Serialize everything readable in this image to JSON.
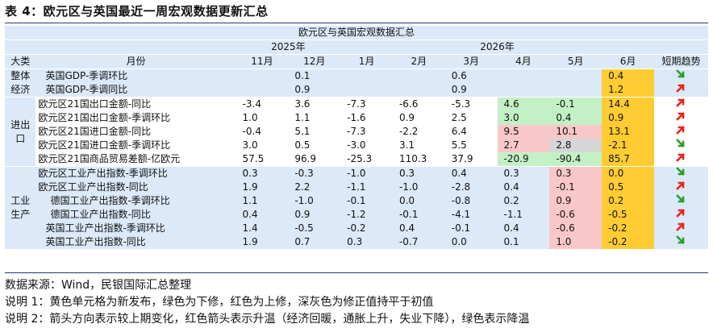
{
  "caption": "表 4：欧元区与英国最近一周宏观数据更新汇总",
  "table_title": "欧元区与英国宏观数据汇总",
  "year_2025": "2025年",
  "year_2026": "2026年",
  "col_category": "大类",
  "col_month": "月份",
  "months": [
    "11月",
    "12月",
    "1月",
    "2月",
    "3月",
    "4月",
    "5月",
    "6月"
  ],
  "col_trend": "短期趋势",
  "categories": {
    "overall": "整体\n经济",
    "trade": "进出\n口",
    "industry": "工业\n生产"
  },
  "rows": [
    {
      "name": "英国GDP-季调环比",
      "values": [
        "",
        "0.1",
        "",
        "",
        "0.6",
        "",
        "",
        "0.4"
      ],
      "trend": "down"
    },
    {
      "name": "英国GDP-季调同比",
      "values": [
        "",
        "0.9",
        "",
        "",
        "0.9",
        "",
        "",
        "1.2"
      ],
      "trend": "up"
    },
    {
      "name": "欧元区21国出口金额-同比",
      "values": [
        "-3.4",
        "3.6",
        "-7.3",
        "-6.6",
        "-5.3",
        "4.6",
        "-0.1",
        "14.4"
      ],
      "trend": "up"
    },
    {
      "name": "欧元区21国出口金额-季调环比",
      "values": [
        "1.0",
        "1.1",
        "-1.6",
        "0.9",
        "2.5",
        "3.0",
        "0.4",
        "0.9"
      ],
      "trend": "up"
    },
    {
      "name": "欧元区21国进口金额-同比",
      "values": [
        "-0.4",
        "5.1",
        "-7.3",
        "-2.2",
        "6.4",
        "9.5",
        "10.1",
        "13.1"
      ],
      "trend": "up"
    },
    {
      "name": "欧元区21国进口金额-季调环比",
      "values": [
        "3.0",
        "0.5",
        "-3.0",
        "3.1",
        "5.5",
        "2.7",
        "2.8",
        "-2.1"
      ],
      "trend": "down"
    },
    {
      "name": "欧元区21国商品贸易差额-亿欧元",
      "values": [
        "57.5",
        "96.9",
        "-25.3",
        "110.3",
        "37.9",
        "-20.9",
        "-90.4",
        "85.7"
      ],
      "trend": "up"
    },
    {
      "name": "欧元区工业产出指数-季调环比",
      "values": [
        "0.3",
        "-0.3",
        "-1.0",
        "0.3",
        "0.4",
        "0.3",
        "0.3",
        "0.0"
      ],
      "trend": "down"
    },
    {
      "name": "欧元区工业产出指数-同比",
      "values": [
        "1.9",
        "2.2",
        "-1.1",
        "-1.0",
        "-2.8",
        "0.4",
        "-0.1",
        "0.5"
      ],
      "trend": "up"
    },
    {
      "name": "德国工业产出指数-季调环比",
      "values": [
        "1.1",
        "-1.0",
        "-0.1",
        "0.0",
        "-0.8",
        "0.2",
        "0.9",
        "0.2"
      ],
      "trend": "down"
    },
    {
      "name": "德国工业产出指数-同比",
      "values": [
        "0.4",
        "0.9",
        "-1.2",
        "-0.1",
        "-4.1",
        "-1.1",
        "-0.6",
        "-0.5"
      ],
      "trend": "up"
    },
    {
      "name": "英国工业产出指数-季调环比",
      "values": [
        "1.4",
        "-0.5",
        "-0.2",
        "0.4",
        "-0.1",
        "0.4",
        "-0.6",
        "-0.2"
      ],
      "trend": "up"
    },
    {
      "name": "英国工业产出指数-同比",
      "values": [
        "1.9",
        "0.7",
        "0.3",
        "-0.7",
        "0.0",
        "0.1",
        "1.0",
        "-0.2"
      ],
      "trend": "down"
    }
  ],
  "notes": [
    "数据来源：Wind，民银国际汇总整理",
    "说明 1：黄色单元格为新发布，绿色为下修，红色为上修，深灰色为修正值持平于初值",
    "说明 2：箭头方向表示较上期变化，红色箭头表示升温（经济回暖，通胀上升，失业下降），绿色表示降温"
  ],
  "colors": {
    "up": "#e8241c",
    "down": "#2a9d2a",
    "new": "#ffcc33",
    "down_rev": "#c3f1c5",
    "up_rev": "#f9c7c7",
    "same": "#d6d6d6",
    "header_bg": "#dce9f8"
  }
}
